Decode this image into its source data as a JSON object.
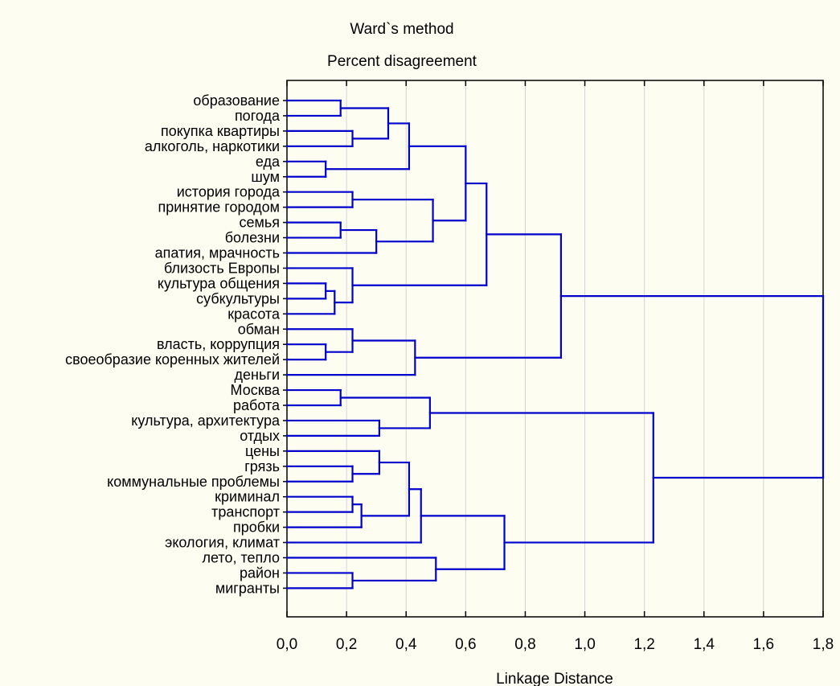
{
  "chart_data": {
    "type": "dendrogram",
    "title": "Ward`s method",
    "subtitle": "Percent disagreement",
    "xlabel": "Linkage Distance",
    "xlim": [
      0,
      1.8
    ],
    "xticks": [
      "0,0",
      "0,2",
      "0,4",
      "0,6",
      "0,8",
      "1,0",
      "1,2",
      "1,4",
      "1,6",
      "1,8"
    ],
    "grid": true,
    "line_color": "#0000cc",
    "leaves": [
      "образование",
      "погода",
      "покупка квартиры",
      "алкоголь, наркотики",
      "еда",
      "шум",
      "история города",
      "принятие городом",
      "семья",
      "болезни",
      "апатия, мрачность",
      "близость Европы",
      "культура общения",
      "субкультуры",
      "красота",
      "обман",
      "власть, коррупция",
      "своеобразие коренных жителей",
      "деньги",
      "Москва",
      "работа",
      "культура, архитектура",
      "отдых",
      "цены",
      "грязь",
      "коммунальные проблемы",
      "криминал",
      "транспорт",
      "пробки",
      "экология, климат",
      "лето, тепло",
      "район",
      "мигранты"
    ],
    "merges": [
      {
        "a": "L0",
        "b": "L1",
        "h": 0.18
      },
      {
        "a": "L2",
        "b": "L3",
        "h": 0.22
      },
      {
        "a": "N0",
        "b": "N1",
        "h": 0.34
      },
      {
        "a": "L4",
        "b": "L5",
        "h": 0.13
      },
      {
        "a": "N2",
        "b": "N3",
        "h": 0.41
      },
      {
        "a": "L6",
        "b": "L7",
        "h": 0.22
      },
      {
        "a": "L8",
        "b": "L9",
        "h": 0.18
      },
      {
        "a": "N6",
        "b": "L10",
        "h": 0.3
      },
      {
        "a": "N5",
        "b": "N7",
        "h": 0.49
      },
      {
        "a": "N4",
        "b": "N8",
        "h": 0.6
      },
      {
        "a": "L12",
        "b": "L13",
        "h": 0.13
      },
      {
        "a": "N10",
        "b": "L14",
        "h": 0.16
      },
      {
        "a": "L11",
        "b": "N11",
        "h": 0.22
      },
      {
        "a": "N9",
        "b": "N12",
        "h": 0.67
      },
      {
        "a": "L16",
        "b": "L17",
        "h": 0.13
      },
      {
        "a": "L15",
        "b": "N14",
        "h": 0.22
      },
      {
        "a": "N15",
        "b": "L18",
        "h": 0.43
      },
      {
        "a": "N13",
        "b": "N16",
        "h": 0.92
      },
      {
        "a": "L19",
        "b": "L20",
        "h": 0.18
      },
      {
        "a": "L21",
        "b": "L22",
        "h": 0.31
      },
      {
        "a": "N18",
        "b": "N19",
        "h": 0.48
      },
      {
        "a": "L24",
        "b": "L25",
        "h": 0.22
      },
      {
        "a": "L23",
        "b": "N21",
        "h": 0.31
      },
      {
        "a": "L26",
        "b": "L27",
        "h": 0.22
      },
      {
        "a": "N23",
        "b": "L28",
        "h": 0.25
      },
      {
        "a": "N22",
        "b": "N24",
        "h": 0.41
      },
      {
        "a": "N25",
        "b": "L29",
        "h": 0.45
      },
      {
        "a": "L31",
        "b": "L32",
        "h": 0.22
      },
      {
        "a": "L30",
        "b": "N27",
        "h": 0.5
      },
      {
        "a": "N26",
        "b": "N28",
        "h": 0.73
      },
      {
        "a": "N20",
        "b": "N29",
        "h": 1.23
      },
      {
        "a": "N17",
        "b": "N30",
        "h": 1.8
      }
    ]
  }
}
